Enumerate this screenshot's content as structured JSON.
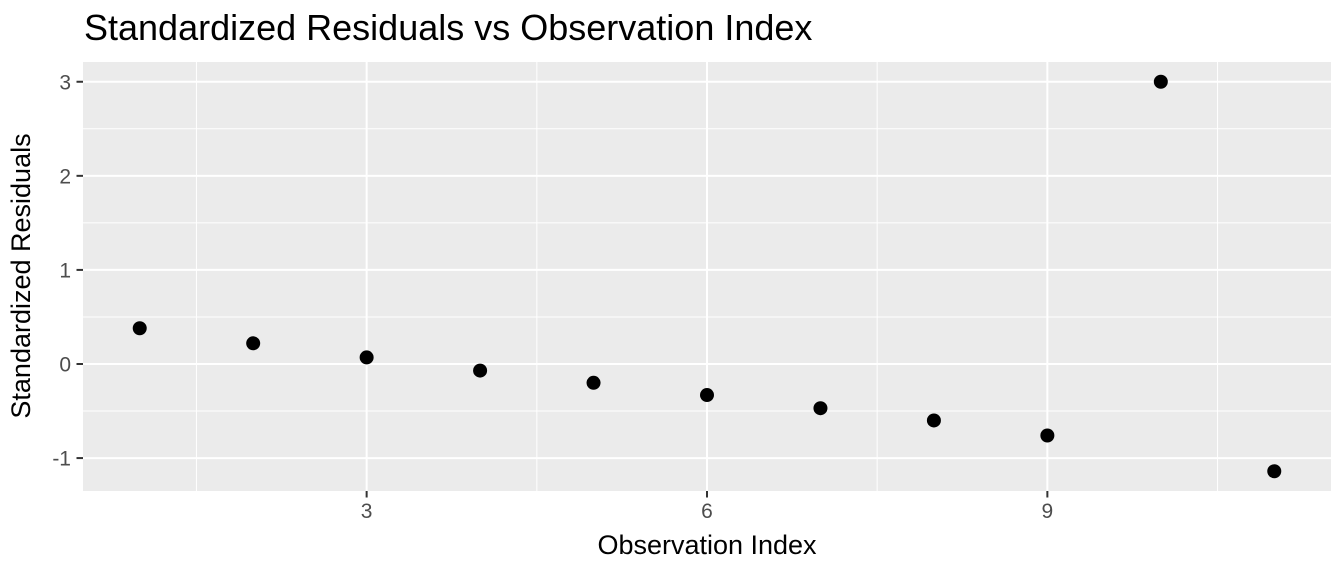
{
  "chart_data": {
    "type": "scatter",
    "title": "Standardized Residuals vs Observation Index",
    "xlabel": "Observation Index",
    "ylabel": "Standardized Residuals",
    "x": [
      1,
      2,
      3,
      4,
      5,
      6,
      7,
      8,
      9,
      10,
      11
    ],
    "y": [
      0.38,
      0.22,
      0.07,
      -0.07,
      -0.2,
      -0.33,
      -0.47,
      -0.6,
      -0.76,
      3.0,
      -1.14
    ],
    "xlim": [
      0.5,
      11.5
    ],
    "ylim": [
      -1.35,
      3.21
    ],
    "x_major_ticks": [
      3,
      6,
      9
    ],
    "y_major_ticks": [
      -1,
      0,
      1,
      2,
      3
    ],
    "x_minor_ticks": [
      1.5,
      4.5,
      7.5,
      10.5
    ],
    "y_minor_ticks": [
      -0.5,
      0.5,
      1.5,
      2.5
    ],
    "grid": "major-and-minor",
    "legend": "none",
    "point_shape": "circle",
    "point_radius": 7,
    "colors": {
      "panel_background": "#EBEBEB",
      "plot_background": "#FFFFFF",
      "gridline": "#FFFFFF",
      "point": "#000000",
      "tick_mark": "#333333",
      "tick_text": "#4D4D4D",
      "title_text": "#000000"
    }
  }
}
